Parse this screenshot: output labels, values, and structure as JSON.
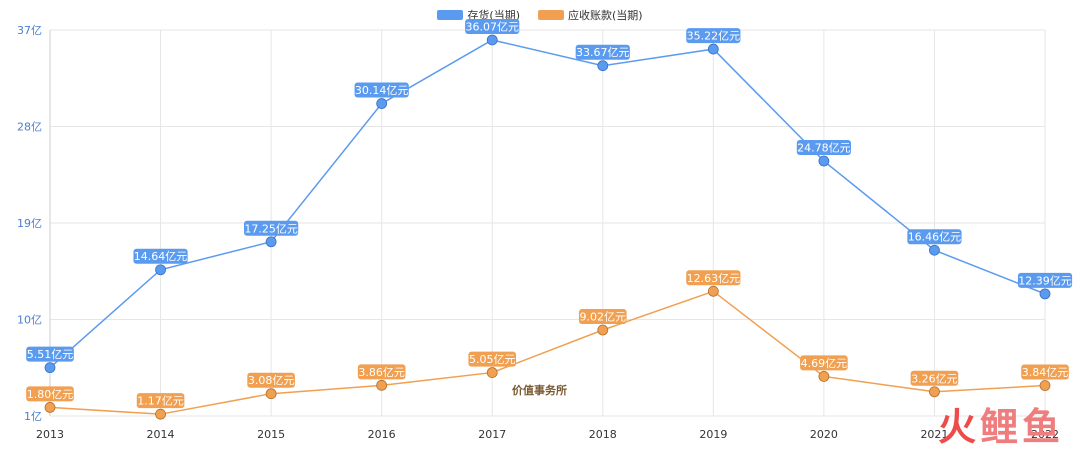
{
  "legend": {
    "series_1": "存货(当期)",
    "series_2": "应收账款(当期)"
  },
  "colors": {
    "series_1": "#5b9bef",
    "series_2": "#f0a050",
    "grid": "#e6e6e6",
    "axis_text": "#333333",
    "ytick_text": "#4a7fd0"
  },
  "stamp_text": "价值事务所",
  "watermark": [
    "火",
    "鲤",
    "鱼"
  ],
  "chart_data": {
    "type": "line",
    "categories": [
      "2013",
      "2014",
      "2015",
      "2016",
      "2017",
      "2018",
      "2019",
      "2020",
      "2021",
      "2022"
    ],
    "series": [
      {
        "name": "存货(当期)",
        "values": [
          5.51,
          14.64,
          17.25,
          30.14,
          36.07,
          33.67,
          35.22,
          24.78,
          16.46,
          12.39
        ],
        "labels": [
          "5.51亿元",
          "14.64亿元",
          "17.25亿元",
          "30.14亿元",
          "36.07亿元",
          "33.67亿元",
          "35.22亿元",
          "24.78亿元",
          "16.46亿元",
          "12.39亿元"
        ]
      },
      {
        "name": "应收账款(当期)",
        "values": [
          1.8,
          1.17,
          3.08,
          3.86,
          5.05,
          9.02,
          12.63,
          4.69,
          3.26,
          3.84
        ],
        "labels": [
          "1.80亿元",
          "1.17亿元",
          "3.08亿元",
          "3.86亿元",
          "5.05亿元",
          "9.02亿元",
          "12.63亿元",
          "4.69亿元",
          "3.26亿元",
          "3.84亿元"
        ]
      }
    ],
    "yticks": [
      1,
      10,
      19,
      28,
      37
    ],
    "ytick_labels": [
      "1亿",
      "10亿",
      "19亿",
      "28亿",
      "37亿"
    ],
    "ylim": [
      1,
      37
    ],
    "grid": true,
    "legend_position": "top-center"
  }
}
